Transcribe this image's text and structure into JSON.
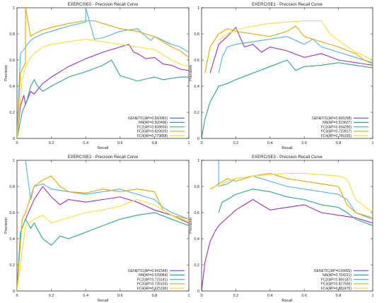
{
  "colors": {
    "GENETIC": "#9b30c8",
    "NN": "#2aa58c",
    "FC2": "#4db3e6",
    "FC3": "#e0a800",
    "FC4": "#f2de3c"
  },
  "chart_data": [
    {
      "type": "line",
      "title": "EXERCISE0 - Precision Recall Curve",
      "xlabel": "Recall",
      "ylabel": "Precision",
      "xlim": [
        0,
        1
      ],
      "ylim": [
        0,
        1
      ],
      "xticks": [
        "0",
        "0.2",
        "0.4",
        "0.6",
        "0.8",
        "1"
      ],
      "yticks": [
        "0",
        "0.2",
        "0.4",
        "0.6",
        "0.8",
        "1"
      ],
      "legend": "bottom-right",
      "series": [
        {
          "key": "GENETIC",
          "name": "GENETIC(AP=0.560983)",
          "x": [
            0,
            0.02,
            0.04,
            0.05,
            0.08,
            0.1,
            0.15,
            0.2,
            0.3,
            0.4,
            0.5,
            0.6,
            0.65,
            0.68,
            0.7,
            0.75,
            0.8,
            0.85,
            0.9,
            0.95,
            1.0
          ],
          "y": [
            0,
            0.25,
            0.33,
            0.26,
            0.36,
            0.34,
            0.42,
            0.47,
            0.55,
            0.61,
            0.66,
            0.7,
            0.72,
            0.66,
            0.65,
            0.61,
            0.62,
            0.57,
            0.56,
            0.53,
            0.52
          ]
        },
        {
          "key": "NN",
          "name": "NN(AP=0.500406)",
          "x": [
            0,
            0.03,
            0.06,
            0.08,
            0.1,
            0.12,
            0.15,
            0.2,
            0.3,
            0.4,
            0.5,
            0.55,
            0.6,
            0.65,
            0.7,
            0.8,
            0.85,
            0.9,
            0.95,
            1.0
          ],
          "y": [
            0,
            0.2,
            0.3,
            0.4,
            0.45,
            0.4,
            0.36,
            0.4,
            0.47,
            0.51,
            0.56,
            0.6,
            0.48,
            0.46,
            0.44,
            0.47,
            0.45,
            0.46,
            0.47,
            0.47
          ]
        },
        {
          "key": "FC2",
          "name": "FC2(AP=0.839659)",
          "x": [
            0,
            0.02,
            0.04,
            0.06,
            0.08,
            0.1,
            0.15,
            0.2,
            0.3,
            0.4,
            0.4,
            0.45,
            0.5,
            0.6,
            0.7,
            0.75,
            0.78,
            0.8,
            0.9,
            0.95,
            1.0
          ],
          "y": [
            0,
            0.65,
            0.68,
            0.72,
            0.75,
            0.77,
            0.8,
            0.82,
            0.86,
            0.89,
            1.0,
            0.76,
            0.77,
            0.82,
            0.84,
            0.78,
            0.75,
            0.78,
            0.72,
            0.7,
            0.66
          ]
        },
        {
          "key": "FC3",
          "name": "FC3(AP=0.820629)",
          "x": [
            0,
            0.02,
            0.05,
            0.05,
            0.08,
            0.1,
            0.15,
            0.2,
            0.3,
            0.4,
            0.45,
            0.5,
            0.6,
            0.7,
            0.8,
            0.85,
            0.9,
            0.95,
            1.0
          ],
          "y": [
            0,
            0.5,
            0.58,
            1.0,
            0.78,
            0.8,
            0.83,
            0.85,
            0.88,
            0.9,
            0.9,
            0.88,
            0.84,
            0.82,
            0.78,
            0.74,
            0.7,
            0.67,
            0.62
          ]
        },
        {
          "key": "FC4",
          "name": "FC4(AP=0.779858)",
          "x": [
            0,
            0.03,
            0.05,
            0.08,
            0.1,
            0.15,
            0.2,
            0.3,
            0.4,
            0.5,
            0.6,
            0.7,
            0.8,
            0.85,
            0.9,
            0.95,
            1.0
          ],
          "y": [
            0,
            0.45,
            0.55,
            0.62,
            0.65,
            0.7,
            0.72,
            0.74,
            0.76,
            0.74,
            0.72,
            0.7,
            0.68,
            0.64,
            0.6,
            0.57,
            0.55
          ]
        }
      ]
    },
    {
      "type": "line",
      "title": "EXERCISE1 - Precision Recall Curve",
      "xlabel": "Recall",
      "ylabel": "Precision",
      "xlim": [
        0,
        1
      ],
      "ylim": [
        0,
        1
      ],
      "xticks": [
        "0",
        "0.2",
        "0.4",
        "0.6",
        "0.8",
        "1"
      ],
      "yticks": [
        "0",
        "0.2",
        "0.4",
        "0.6",
        "0.8",
        "1"
      ],
      "legend": "bottom-right",
      "series": [
        {
          "key": "GENETIC",
          "name": "GENETIC(AP=0.666298)",
          "x": [
            0.05,
            0.1,
            0.15,
            0.2,
            0.25,
            0.3,
            0.35,
            0.4,
            0.5,
            0.6,
            0.7,
            0.8,
            0.9,
            1.0
          ],
          "y": [
            0.5,
            0.72,
            0.78,
            0.85,
            0.7,
            0.72,
            0.66,
            0.7,
            0.67,
            0.62,
            0.65,
            0.6,
            0.58,
            0.56
          ]
        },
        {
          "key": "NN",
          "name": "NN(AP=0.523627)",
          "x": [
            0,
            0.02,
            0.05,
            0.08,
            0.1,
            0.15,
            0.2,
            0.3,
            0.4,
            0.5,
            0.55,
            0.6,
            0.7,
            0.8,
            0.9,
            1.0
          ],
          "y": [
            0,
            0.15,
            0.28,
            0.35,
            0.4,
            0.42,
            0.45,
            0.5,
            0.55,
            0.6,
            0.52,
            0.55,
            0.56,
            0.58,
            0.56,
            0.54
          ]
        },
        {
          "key": "FC2",
          "name": "FC2(AP=0.694290)",
          "x": [
            0.1,
            0.12,
            0.15,
            0.2,
            0.3,
            0.4,
            0.5,
            0.6,
            0.65,
            0.7,
            0.8,
            0.9,
            1.0
          ],
          "y": [
            0.5,
            0.62,
            0.7,
            0.72,
            0.74,
            0.76,
            0.78,
            0.72,
            0.76,
            0.7,
            0.66,
            0.62,
            0.58
          ]
        },
        {
          "key": "FC3",
          "name": "FC3(AP=0.722817)",
          "x": [
            0.02,
            0.05,
            0.1,
            0.15,
            0.2,
            0.3,
            0.4,
            0.5,
            0.55,
            0.6,
            0.7,
            0.8,
            0.9,
            0.95,
            1.0
          ],
          "y": [
            0.5,
            0.7,
            0.8,
            0.84,
            0.82,
            0.8,
            0.78,
            0.82,
            0.86,
            0.78,
            0.74,
            0.7,
            0.65,
            0.6,
            0.57
          ]
        },
        {
          "key": "FC4",
          "name": "FC4(AP=0.789155)",
          "x": [
            0.1,
            0.15,
            0.2,
            0.3,
            0.4,
            0.5,
            0.6,
            0.7,
            0.75,
            0.8,
            0.9,
            1.0
          ],
          "y": [
            0.75,
            0.8,
            0.83,
            0.86,
            0.88,
            0.89,
            0.9,
            0.9,
            0.8,
            0.75,
            0.66,
            0.6
          ]
        }
      ]
    },
    {
      "type": "line",
      "title": "EXERCISE2 - Precision Recall Curve",
      "xlabel": "Recall",
      "ylabel": "Precision",
      "xlim": [
        0,
        1
      ],
      "ylim": [
        0,
        1
      ],
      "xticks": [
        "0",
        "0.2",
        "0.4",
        "0.6",
        "0.8",
        "1"
      ],
      "yticks": [
        "0",
        "0.2",
        "0.4",
        "0.6",
        "0.8",
        "1"
      ],
      "legend": "bottom-right",
      "series": [
        {
          "key": "GENETIC",
          "name": "GENETIC(AP=0.641548)",
          "x": [
            0.05,
            0.1,
            0.15,
            0.2,
            0.25,
            0.3,
            0.4,
            0.5,
            0.6,
            0.7,
            0.75,
            0.8,
            0.9,
            1.0
          ],
          "y": [
            0.55,
            0.7,
            0.8,
            0.72,
            0.66,
            0.7,
            0.68,
            0.7,
            0.72,
            0.68,
            0.65,
            0.62,
            0.58,
            0.52
          ]
        },
        {
          "key": "NN",
          "name": "NN(AP=0.539984)",
          "x": [
            0,
            0.02,
            0.05,
            0.08,
            0.1,
            0.15,
            0.2,
            0.25,
            0.3,
            0.4,
            0.5,
            0.6,
            0.7,
            0.8,
            0.9,
            1.0
          ],
          "y": [
            0,
            0.45,
            0.55,
            0.48,
            0.52,
            0.4,
            0.35,
            0.42,
            0.4,
            0.45,
            0.5,
            0.55,
            0.58,
            0.6,
            0.55,
            0.5
          ]
        },
        {
          "key": "FC2",
          "name": "FC2(AP=0.715141)",
          "x": [
            0.05,
            0.08,
            0.1,
            0.15,
            0.2,
            0.3,
            0.4,
            0.5,
            0.6,
            0.7,
            0.8,
            0.85,
            0.9,
            1.0
          ],
          "y": [
            1.0,
            0.7,
            0.8,
            0.82,
            0.78,
            0.76,
            0.74,
            0.76,
            0.78,
            0.74,
            0.7,
            0.64,
            0.6,
            0.55
          ]
        },
        {
          "key": "FC3",
          "name": "FC3(AP=0.735103)",
          "x": [
            0,
            0.03,
            0.05,
            0.1,
            0.15,
            0.2,
            0.25,
            0.3,
            0.4,
            0.5,
            0.6,
            0.7,
            0.8,
            0.85,
            0.9,
            1.0
          ],
          "y": [
            0,
            0.55,
            0.6,
            0.8,
            0.85,
            0.88,
            0.8,
            0.76,
            0.75,
            0.78,
            0.76,
            0.78,
            0.76,
            0.62,
            0.58,
            0.55
          ]
        },
        {
          "key": "FC4",
          "name": "FC4(AP=0.625196)",
          "x": [
            0,
            0.05,
            0.1,
            0.15,
            0.2,
            0.3,
            0.4,
            0.5,
            0.6,
            0.7,
            0.8,
            0.9,
            1.0
          ],
          "y": [
            0,
            0.5,
            0.55,
            0.58,
            0.52,
            0.56,
            0.6,
            0.62,
            0.65,
            0.7,
            0.66,
            0.58,
            0.53
          ]
        }
      ]
    },
    {
      "type": "line",
      "title": "EXERCISE3 - Precision Recall Curve",
      "xlabel": "Recall",
      "ylabel": "Precision",
      "xlim": [
        0,
        1
      ],
      "ylim": [
        0,
        1
      ],
      "xticks": [
        "0",
        "0.2",
        "0.4",
        "0.6",
        "0.8",
        "1"
      ],
      "yticks": [
        "0",
        "0.2",
        "0.4",
        "0.6",
        "0.8",
        "1"
      ],
      "legend": "bottom-right",
      "series": [
        {
          "key": "GENETIC",
          "name": "GENETIC(AP=0.59055)",
          "x": [
            0,
            0.02,
            0.05,
            0.08,
            0.1,
            0.15,
            0.2,
            0.25,
            0.3,
            0.4,
            0.5,
            0.6,
            0.7,
            0.8,
            0.9,
            1.0
          ],
          "y": [
            0,
            0.22,
            0.38,
            0.46,
            0.5,
            0.56,
            0.62,
            0.66,
            0.7,
            0.62,
            0.64,
            0.66,
            0.6,
            0.58,
            0.56,
            0.52
          ]
        },
        {
          "key": "NN",
          "name": "NN(AP=0.704221)",
          "x": [
            0.1,
            0.12,
            0.15,
            0.2,
            0.3,
            0.4,
            0.5,
            0.6,
            0.7,
            0.8,
            0.85,
            0.9,
            1.0
          ],
          "y": [
            0.6,
            0.68,
            0.7,
            0.74,
            0.78,
            0.76,
            0.72,
            0.7,
            0.66,
            0.64,
            0.6,
            0.55,
            0.5
          ]
        },
        {
          "key": "FC2",
          "name": "FC2(AP=0.865187)",
          "x": [
            0.1,
            0.1,
            0.15,
            0.2,
            0.3,
            0.4,
            0.5,
            0.6,
            0.7,
            0.8,
            0.85,
            0.9,
            1.0
          ],
          "y": [
            1.0,
            0.8,
            0.82,
            0.86,
            0.88,
            0.84,
            0.8,
            0.78,
            0.76,
            0.74,
            0.7,
            0.6,
            0.55
          ]
        },
        {
          "key": "FC3",
          "name": "FC3(AP=0.827556)",
          "x": [
            0.05,
            0.08,
            0.1,
            0.15,
            0.2,
            0.3,
            0.4,
            0.5,
            0.6,
            0.7,
            0.8,
            0.85,
            0.9,
            1.0
          ],
          "y": [
            0.78,
            0.8,
            0.82,
            0.86,
            0.84,
            0.88,
            0.9,
            0.86,
            0.84,
            0.82,
            0.8,
            0.66,
            0.6,
            0.56
          ]
        },
        {
          "key": "FC4",
          "name": "FC4(AP=0.882476)",
          "x": [
            0.1,
            0.15,
            0.2,
            0.3,
            0.4,
            0.5,
            0.6,
            0.7,
            0.8,
            0.85,
            0.9,
            1.0
          ],
          "y": [
            0.8,
            0.84,
            0.86,
            0.88,
            0.89,
            0.9,
            0.9,
            0.89,
            0.88,
            0.86,
            0.7,
            0.6
          ]
        }
      ]
    }
  ]
}
